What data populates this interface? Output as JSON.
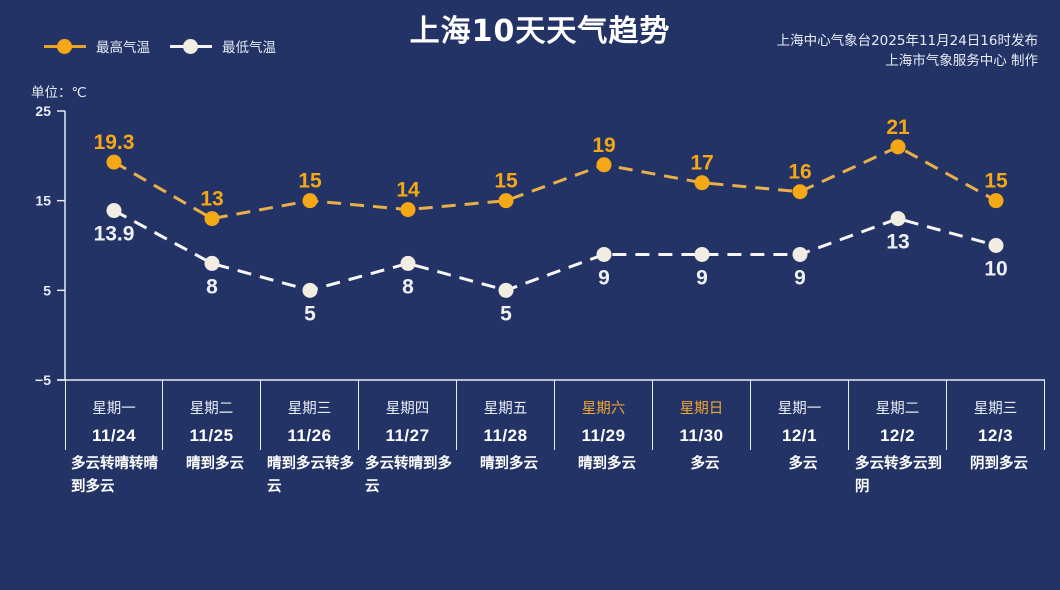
{
  "title": "上海10天天气趋势",
  "publisher": {
    "line1": "上海中心气象台2025年11月24日16时发布",
    "line2": "上海市气象服务中心  制作"
  },
  "legend": [
    {
      "label": "最高气温",
      "color": "#f5a816"
    },
    {
      "label": "最低气温",
      "color": "#f2ede3"
    }
  ],
  "unit_label": "单位：℃",
  "colors": {
    "background": "#233365",
    "high": "#f5a816",
    "high_line": "#e8b04a",
    "low": "#f2ede3",
    "weekend": "#f0a634",
    "axis": "#e6ebf5"
  },
  "days": [
    {
      "weekday": "星期一",
      "date": "11/24",
      "weather": "多云转晴转晴到多云",
      "weekend": false
    },
    {
      "weekday": "星期二",
      "date": "11/25",
      "weather": "晴到多云",
      "weekend": false
    },
    {
      "weekday": "星期三",
      "date": "11/26",
      "weather": "晴到多云转多云",
      "weekend": false
    },
    {
      "weekday": "星期四",
      "date": "11/27",
      "weather": "多云转晴到多云",
      "weekend": false
    },
    {
      "weekday": "星期五",
      "date": "11/28",
      "weather": "晴到多云",
      "weekend": false
    },
    {
      "weekday": "星期六",
      "date": "11/29",
      "weather": "晴到多云",
      "weekend": true
    },
    {
      "weekday": "星期日",
      "date": "11/30",
      "weather": "多云",
      "weekend": true
    },
    {
      "weekday": "星期一",
      "date": "12/1",
      "weather": "多云",
      "weekend": false
    },
    {
      "weekday": "星期二",
      "date": "12/2",
      "weather": "多云转多云到阴",
      "weekend": false
    },
    {
      "weekday": "星期三",
      "date": "12/3",
      "weather": "阴到多云",
      "weekend": false
    }
  ],
  "chart_data": {
    "type": "line",
    "title": "上海10天天气趋势",
    "xlabel": "",
    "ylabel": "单位：℃",
    "categories": [
      "11/24",
      "11/25",
      "11/26",
      "11/27",
      "11/28",
      "11/29",
      "11/30",
      "12/1",
      "12/2",
      "12/3"
    ],
    "series": [
      {
        "name": "最高气温",
        "values": [
          19.3,
          13,
          15,
          14,
          15,
          19,
          17,
          16,
          21,
          15
        ],
        "color": "#f5a816",
        "style": "dashed"
      },
      {
        "name": "最低气温",
        "values": [
          13.9,
          8,
          5,
          8,
          5,
          9,
          9,
          9,
          13,
          10
        ],
        "color": "#f2ede3",
        "style": "dashed"
      }
    ],
    "yticks": [
      25,
      15,
      5,
      -5
    ],
    "ylim": [
      -5,
      25
    ],
    "grid": false,
    "legend_position": "top-left"
  }
}
